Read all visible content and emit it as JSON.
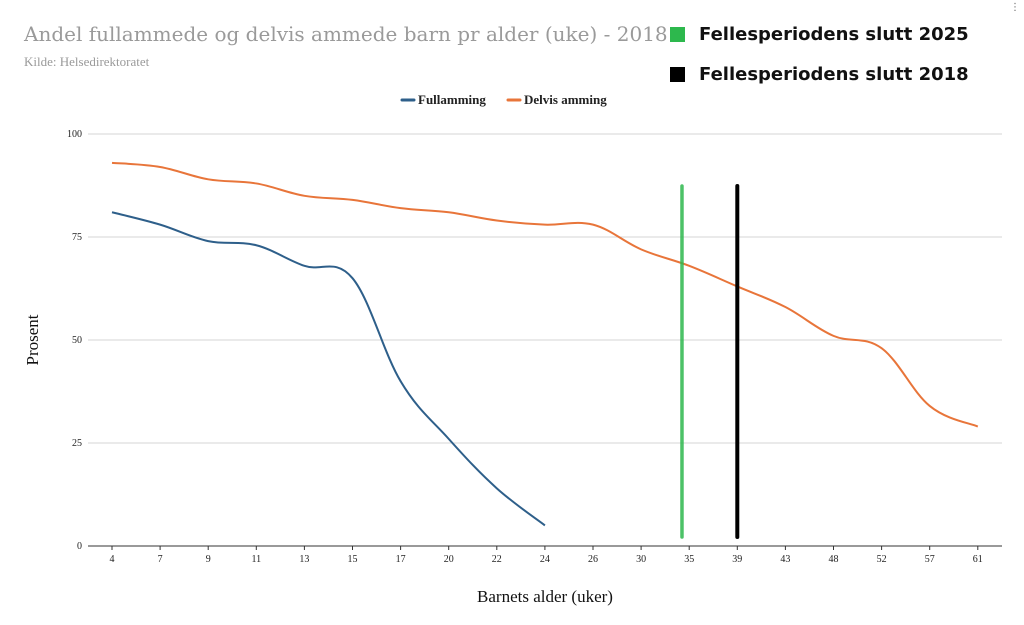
{
  "chart_data": {
    "type": "line",
    "title": "Andel fullammede og delvis ammede barn pr alder (uke) - 2018",
    "subtitle": "Kilde: Helsedirektoratet",
    "xlabel": "Barnets alder (uker)",
    "ylabel": "Prosent",
    "categories": [
      "4",
      "7",
      "9",
      "11",
      "13",
      "15",
      "17",
      "20",
      "22",
      "24",
      "26",
      "30",
      "35",
      "39",
      "43",
      "48",
      "52",
      "57",
      "61"
    ],
    "ylim": [
      0,
      100
    ],
    "yticks": [
      "0",
      "25",
      "50",
      "75",
      "100"
    ],
    "grid": true,
    "legend_position": "top",
    "series": [
      {
        "name": "Fullamming",
        "color": "#2e5f8a",
        "values": [
          81,
          78,
          74,
          73,
          68,
          65,
          40,
          26,
          14,
          5,
          null,
          null,
          null,
          null,
          null,
          null,
          null,
          null,
          null
        ]
      },
      {
        "name": "Delvis amming",
        "color": "#e8753a",
        "values": [
          93,
          92,
          89,
          88,
          85,
          84,
          82,
          81,
          79,
          78,
          78,
          72,
          68,
          63,
          58,
          51,
          48,
          34,
          29
        ]
      }
    ],
    "markers": [
      {
        "label": "Fellesperiodens slutt 2025",
        "color": "#2db84d",
        "x_category": "35",
        "x_offset": -0.15
      },
      {
        "label": "Fellesperiodens slutt 2018",
        "color": "#000000",
        "x_category": "39",
        "x_offset": 0
      }
    ]
  }
}
